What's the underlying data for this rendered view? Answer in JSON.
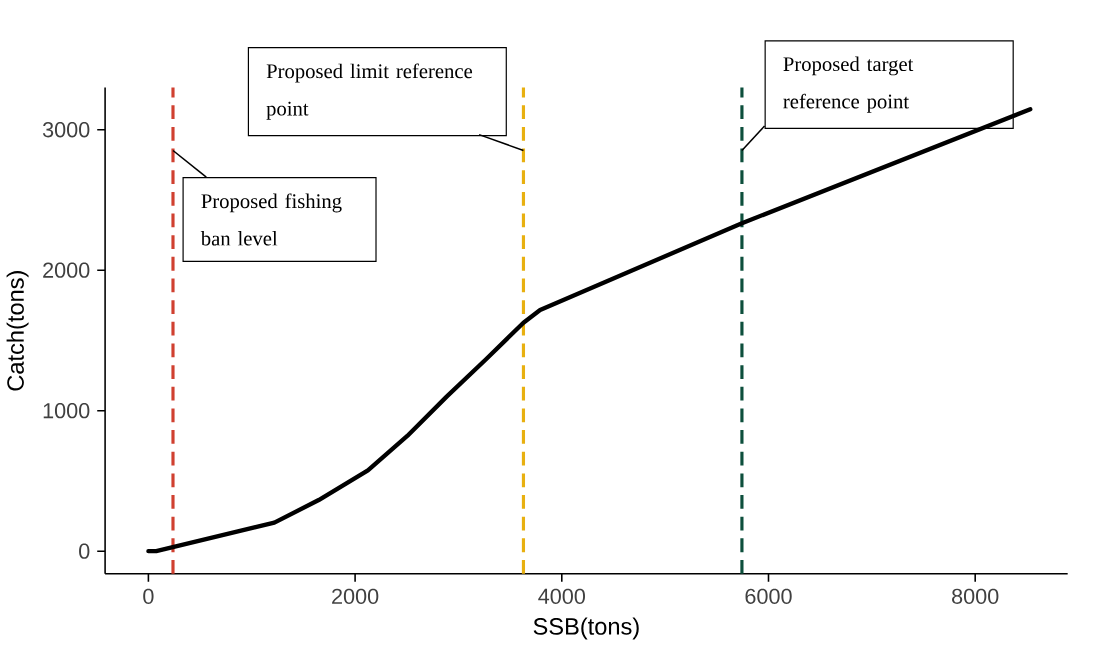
{
  "chart_data": {
    "type": "line",
    "xlabel": "SSB(tons)",
    "ylabel": "Catch(tons)",
    "x": [
      0,
      76,
      1219,
      1648,
      2124,
      2505,
      2886,
      3267,
      3629,
      3790,
      5743,
      8533
    ],
    "values": [
      0,
      0,
      203,
      364,
      575,
      820,
      1100,
      1366,
      1626,
      1717,
      2334,
      3146
    ],
    "color": "#000000",
    "xlim": [
      -419,
      8895
    ],
    "ylim": [
      -161,
      3300
    ],
    "xticks": [
      0,
      2000,
      4000,
      6000,
      8000
    ],
    "yticks": [
      0,
      1000,
      2000,
      3000
    ],
    "ref_lines": [
      {
        "axis": "x",
        "value": 238,
        "label": "Proposed fishing ban level",
        "color": "#d04030",
        "line_style": "dashed"
      },
      {
        "axis": "x",
        "value": 3629,
        "label": "Proposed limit reference point",
        "color": "#e8b010",
        "line_style": "dashed"
      },
      {
        "axis": "x",
        "value": 5743,
        "label": "Proposed target reference point",
        "color": "#0d4f3c",
        "line_style": "dashed"
      }
    ]
  }
}
